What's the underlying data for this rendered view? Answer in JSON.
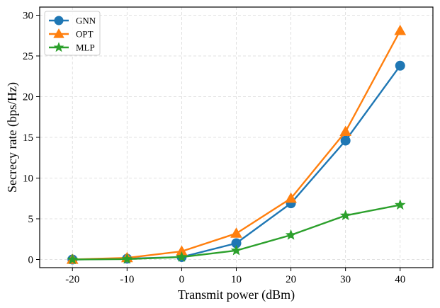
{
  "chart_data": {
    "type": "line",
    "title": "",
    "xlabel": "Transmit power (dBm)",
    "ylabel": "Secrecy rate (bps/Hz)",
    "x": [
      -20,
      -10,
      0,
      10,
      20,
      30,
      40
    ],
    "x_tick_labels": [
      "-20",
      "-10",
      "0",
      "10",
      "20",
      "30",
      "40"
    ],
    "xlim": [
      -26,
      46
    ],
    "ylim": [
      -1,
      31
    ],
    "y_ticks": [
      0,
      5,
      10,
      15,
      20,
      25,
      30
    ],
    "y_tick_labels": [
      "0",
      "5",
      "10",
      "15",
      "20",
      "25",
      "30"
    ],
    "grid": true,
    "legend_position": "top-left",
    "series": [
      {
        "name": "GNN",
        "marker": "circle",
        "color": "#1f77b4",
        "values": [
          0.0,
          0.1,
          0.3,
          2.0,
          6.9,
          14.6,
          23.8
        ]
      },
      {
        "name": "OPT",
        "marker": "triangle",
        "color": "#ff7f0e",
        "values": [
          0.0,
          0.2,
          1.0,
          3.2,
          7.5,
          15.7,
          28.1
        ]
      },
      {
        "name": "MLP",
        "marker": "star",
        "color": "#2ca02c",
        "values": [
          0.0,
          0.05,
          0.3,
          1.1,
          3.0,
          5.4,
          6.7
        ]
      }
    ]
  }
}
